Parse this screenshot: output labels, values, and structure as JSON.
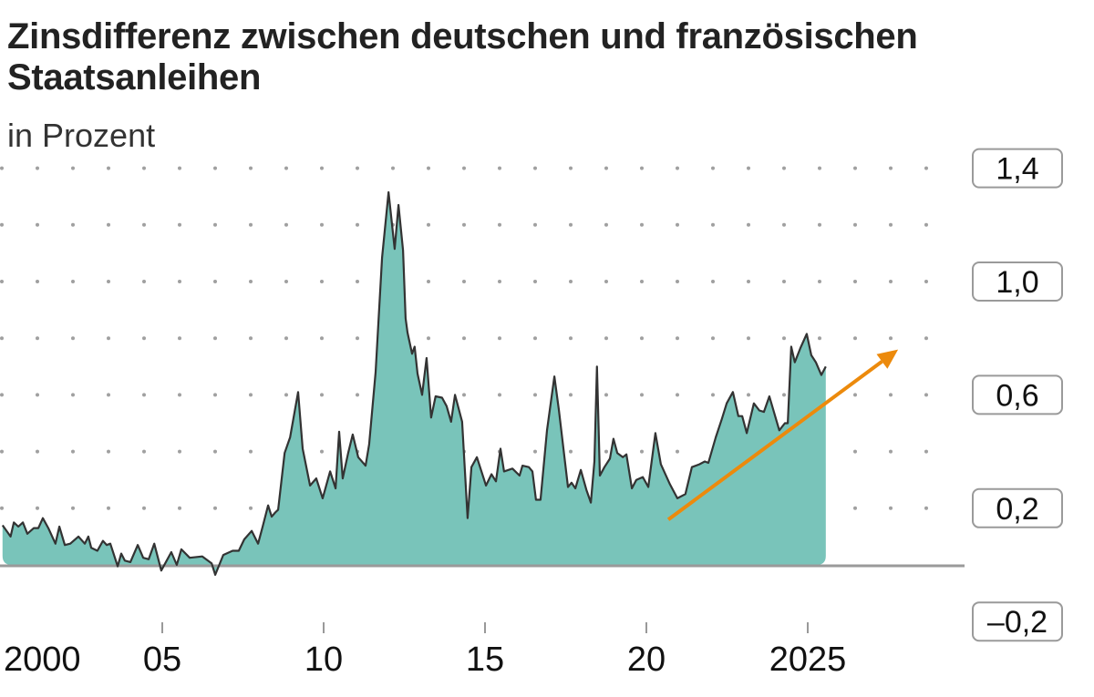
{
  "chart_data": {
    "type": "area",
    "title": "Zinsdifferenz zwischen deutschen und französischen Staatsanleihen",
    "subtitle": "in Prozent",
    "xlabel": "",
    "ylabel": "",
    "xlim": [
      2000,
      2030
    ],
    "ylim": [
      -0.2,
      1.4
    ],
    "grid": true,
    "grid_style": "dotted",
    "y_gridlines": [
      0.2,
      0.4,
      0.6,
      0.8,
      1.0,
      1.2,
      1.4
    ],
    "y_ticks": [
      {
        "value": 1.4,
        "label": "1,4"
      },
      {
        "value": 1.0,
        "label": "1,0"
      },
      {
        "value": 0.6,
        "label": "0,6"
      },
      {
        "value": 0.2,
        "label": "0,2"
      },
      {
        "value": -0.2,
        "label": "–0,2"
      }
    ],
    "x_ticks": [
      {
        "value": 2000,
        "label": "2000"
      },
      {
        "value": 2005,
        "label": "05"
      },
      {
        "value": 2010,
        "label": "10"
      },
      {
        "value": 2015,
        "label": "15"
      },
      {
        "value": 2020,
        "label": "20"
      },
      {
        "value": 2025,
        "label": "2025"
      }
    ],
    "colors": {
      "fill": "#79c4ba",
      "line": "#333333",
      "baseline": "#9a9a9a",
      "arrow": "#ec8a0c",
      "grid": "#a0a0a0"
    },
    "series": [
      {
        "x": [
          2000.05,
          2000.3,
          2000.4,
          2000.54,
          2000.68,
          2000.82,
          2001.02,
          2001.16,
          2001.3,
          2001.47,
          2001.69,
          2001.81,
          2001.98,
          2002.15,
          2002.4,
          2002.6,
          2002.71,
          2002.8,
          2002.99,
          2003.16,
          2003.28,
          2003.39,
          2003.62,
          2003.73,
          2003.84,
          2004.01,
          2004.24,
          2004.41,
          2004.58,
          2004.75,
          2004.97,
          2005.28,
          2005.45,
          2005.59,
          2005.85,
          2006.24,
          2006.53,
          2006.64,
          2006.89,
          2007.18,
          2007.37,
          2007.54,
          2007.77,
          2007.97,
          2008.11,
          2008.28,
          2008.39,
          2008.5,
          2008.59,
          2008.79,
          2008.96,
          2009.21,
          2009.35,
          2009.58,
          2009.77,
          2009.97,
          2010.2,
          2010.37,
          2010.48,
          2010.59,
          2010.76,
          2010.9,
          2011.07,
          2011.3,
          2011.41,
          2011.61,
          2011.81,
          2012.01,
          2012.2,
          2012.32,
          2012.46,
          2012.54,
          2012.6,
          2012.74,
          2012.82,
          2012.91,
          2013.05,
          2013.19,
          2013.33,
          2013.47,
          2013.67,
          2013.81,
          2013.95,
          2014.07,
          2014.29,
          2014.46,
          2014.58,
          2014.75,
          2015.03,
          2015.2,
          2015.34,
          2015.48,
          2015.59,
          2015.85,
          2016.07,
          2016.16,
          2016.36,
          2016.47,
          2016.58,
          2016.72,
          2016.92,
          2017.15,
          2017.29,
          2017.57,
          2017.68,
          2017.8,
          2017.97,
          2018.14,
          2018.28,
          2018.39,
          2018.47,
          2018.56,
          2018.7,
          2018.87,
          2018.98,
          2019.1,
          2019.27,
          2019.38,
          2019.55,
          2019.69,
          2019.89,
          2020.06,
          2020.28,
          2020.45,
          2020.73,
          2020.96,
          2021.21,
          2021.41,
          2021.64,
          2021.81,
          2021.92,
          2022.15,
          2022.34,
          2022.49,
          2022.68,
          2022.85,
          2022.97,
          2023.11,
          2023.33,
          2023.5,
          2023.64,
          2023.81,
          2024.12,
          2024.29,
          2024.38,
          2024.49,
          2024.6,
          2024.77,
          2024.97,
          2025.11,
          2025.25,
          2025.42,
          2025.56
        ],
        "y": [
          0.14,
          0.1,
          0.15,
          0.135,
          0.15,
          0.11,
          0.13,
          0.13,
          0.165,
          0.13,
          0.075,
          0.135,
          0.07,
          0.075,
          0.1,
          0.075,
          0.1,
          0.06,
          0.05,
          0.085,
          0.07,
          0.075,
          -0.005,
          0.04,
          0.015,
          0.01,
          0.07,
          0.025,
          0.02,
          0.075,
          -0.02,
          0.045,
          0.0,
          0.055,
          0.025,
          0.03,
          0.005,
          -0.035,
          0.035,
          0.05,
          0.05,
          0.09,
          0.12,
          0.075,
          0.135,
          0.21,
          0.17,
          0.185,
          0.195,
          0.395,
          0.45,
          0.61,
          0.41,
          0.28,
          0.305,
          0.235,
          0.33,
          0.27,
          0.47,
          0.305,
          0.395,
          0.46,
          0.38,
          0.35,
          0.425,
          0.68,
          1.085,
          1.315,
          1.115,
          1.27,
          1.11,
          0.87,
          0.82,
          0.745,
          0.77,
          0.675,
          0.6,
          0.73,
          0.52,
          0.595,
          0.59,
          0.56,
          0.505,
          0.6,
          0.505,
          0.165,
          0.345,
          0.38,
          0.28,
          0.32,
          0.295,
          0.41,
          0.33,
          0.34,
          0.315,
          0.35,
          0.345,
          0.33,
          0.23,
          0.23,
          0.475,
          0.665,
          0.545,
          0.275,
          0.29,
          0.27,
          0.335,
          0.265,
          0.22,
          0.365,
          0.7,
          0.315,
          0.345,
          0.375,
          0.445,
          0.395,
          0.38,
          0.39,
          0.27,
          0.3,
          0.31,
          0.275,
          0.465,
          0.355,
          0.285,
          0.235,
          0.25,
          0.345,
          0.355,
          0.365,
          0.36,
          0.45,
          0.515,
          0.57,
          0.61,
          0.525,
          0.525,
          0.465,
          0.57,
          0.545,
          0.54,
          0.595,
          0.475,
          0.5,
          0.5,
          0.77,
          0.715,
          0.765,
          0.815,
          0.74,
          0.715,
          0.67,
          0.7
        ]
      }
    ],
    "annotations": [
      {
        "type": "arrow",
        "from": [
          2020.68,
          0.16
        ],
        "to": [
          2027.8,
          0.76
        ],
        "color": "#ec8a0c"
      }
    ]
  }
}
